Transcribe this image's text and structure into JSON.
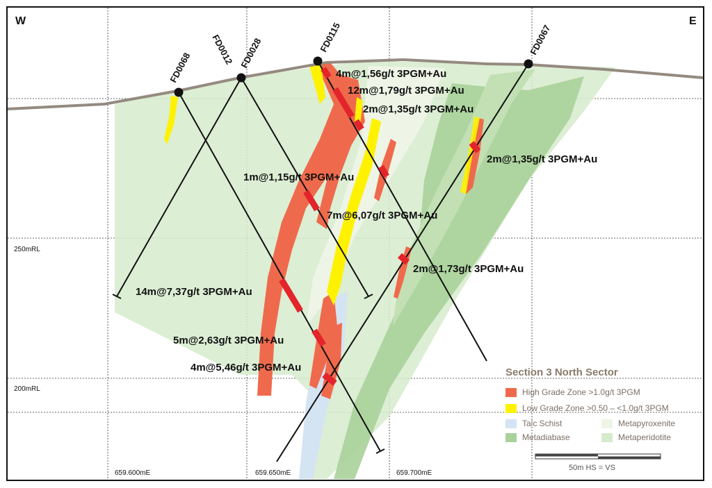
{
  "compass": {
    "west": "W",
    "east": "E"
  },
  "elevations": [
    "250mRL",
    "200mRL"
  ],
  "eastings": [
    "659.600mE",
    "659.650mE",
    "659.700mE"
  ],
  "drillholes": [
    "FD0068",
    "FD0012",
    "FD0028",
    "FD0115",
    "FD0067"
  ],
  "intercepts": [
    "4m@1,56g/t 3PGM+Au",
    "12m@1,79g/t 3PGM+Au",
    "2m@1,35g/t 3PGM+Au",
    "2m@1,35g/t 3PGM+Au",
    "1m@1,15g/t 3PGM+Au",
    "7m@6,07g/t 3PGM+Au",
    "2m@1,73g/t 3PGM+Au",
    "14m@7,37g/t 3PGM+Au",
    "5m@2,63g/t 3PGM+Au",
    "4m@5,46g/t 3PGM+Au"
  ],
  "legend": {
    "title": "Section 3 North Sector",
    "high_grade": "High Grade Zone >1.0g/t 3PGM",
    "low_grade": "Low Grade Zone >0.50 – <1.0g/t 3PGM",
    "talc_schist": "Talc Schist",
    "metapyroxenite": "Metapyroxenite",
    "metadiabase": "Metadiabase",
    "metaperidotite": "Metaperidotite"
  },
  "scale": {
    "label": "50m  HS = VS"
  },
  "colors": {
    "high_grade": "#ef6a4c",
    "low_grade": "#fff200",
    "talc_schist": "#d5e4f3",
    "metapyroxenite": "#eef4e6",
    "metadiabase": "#a9d19a",
    "metaperidotite": "#d6ebcd",
    "intercept": "#e3242b",
    "topography": "#948a80"
  }
}
